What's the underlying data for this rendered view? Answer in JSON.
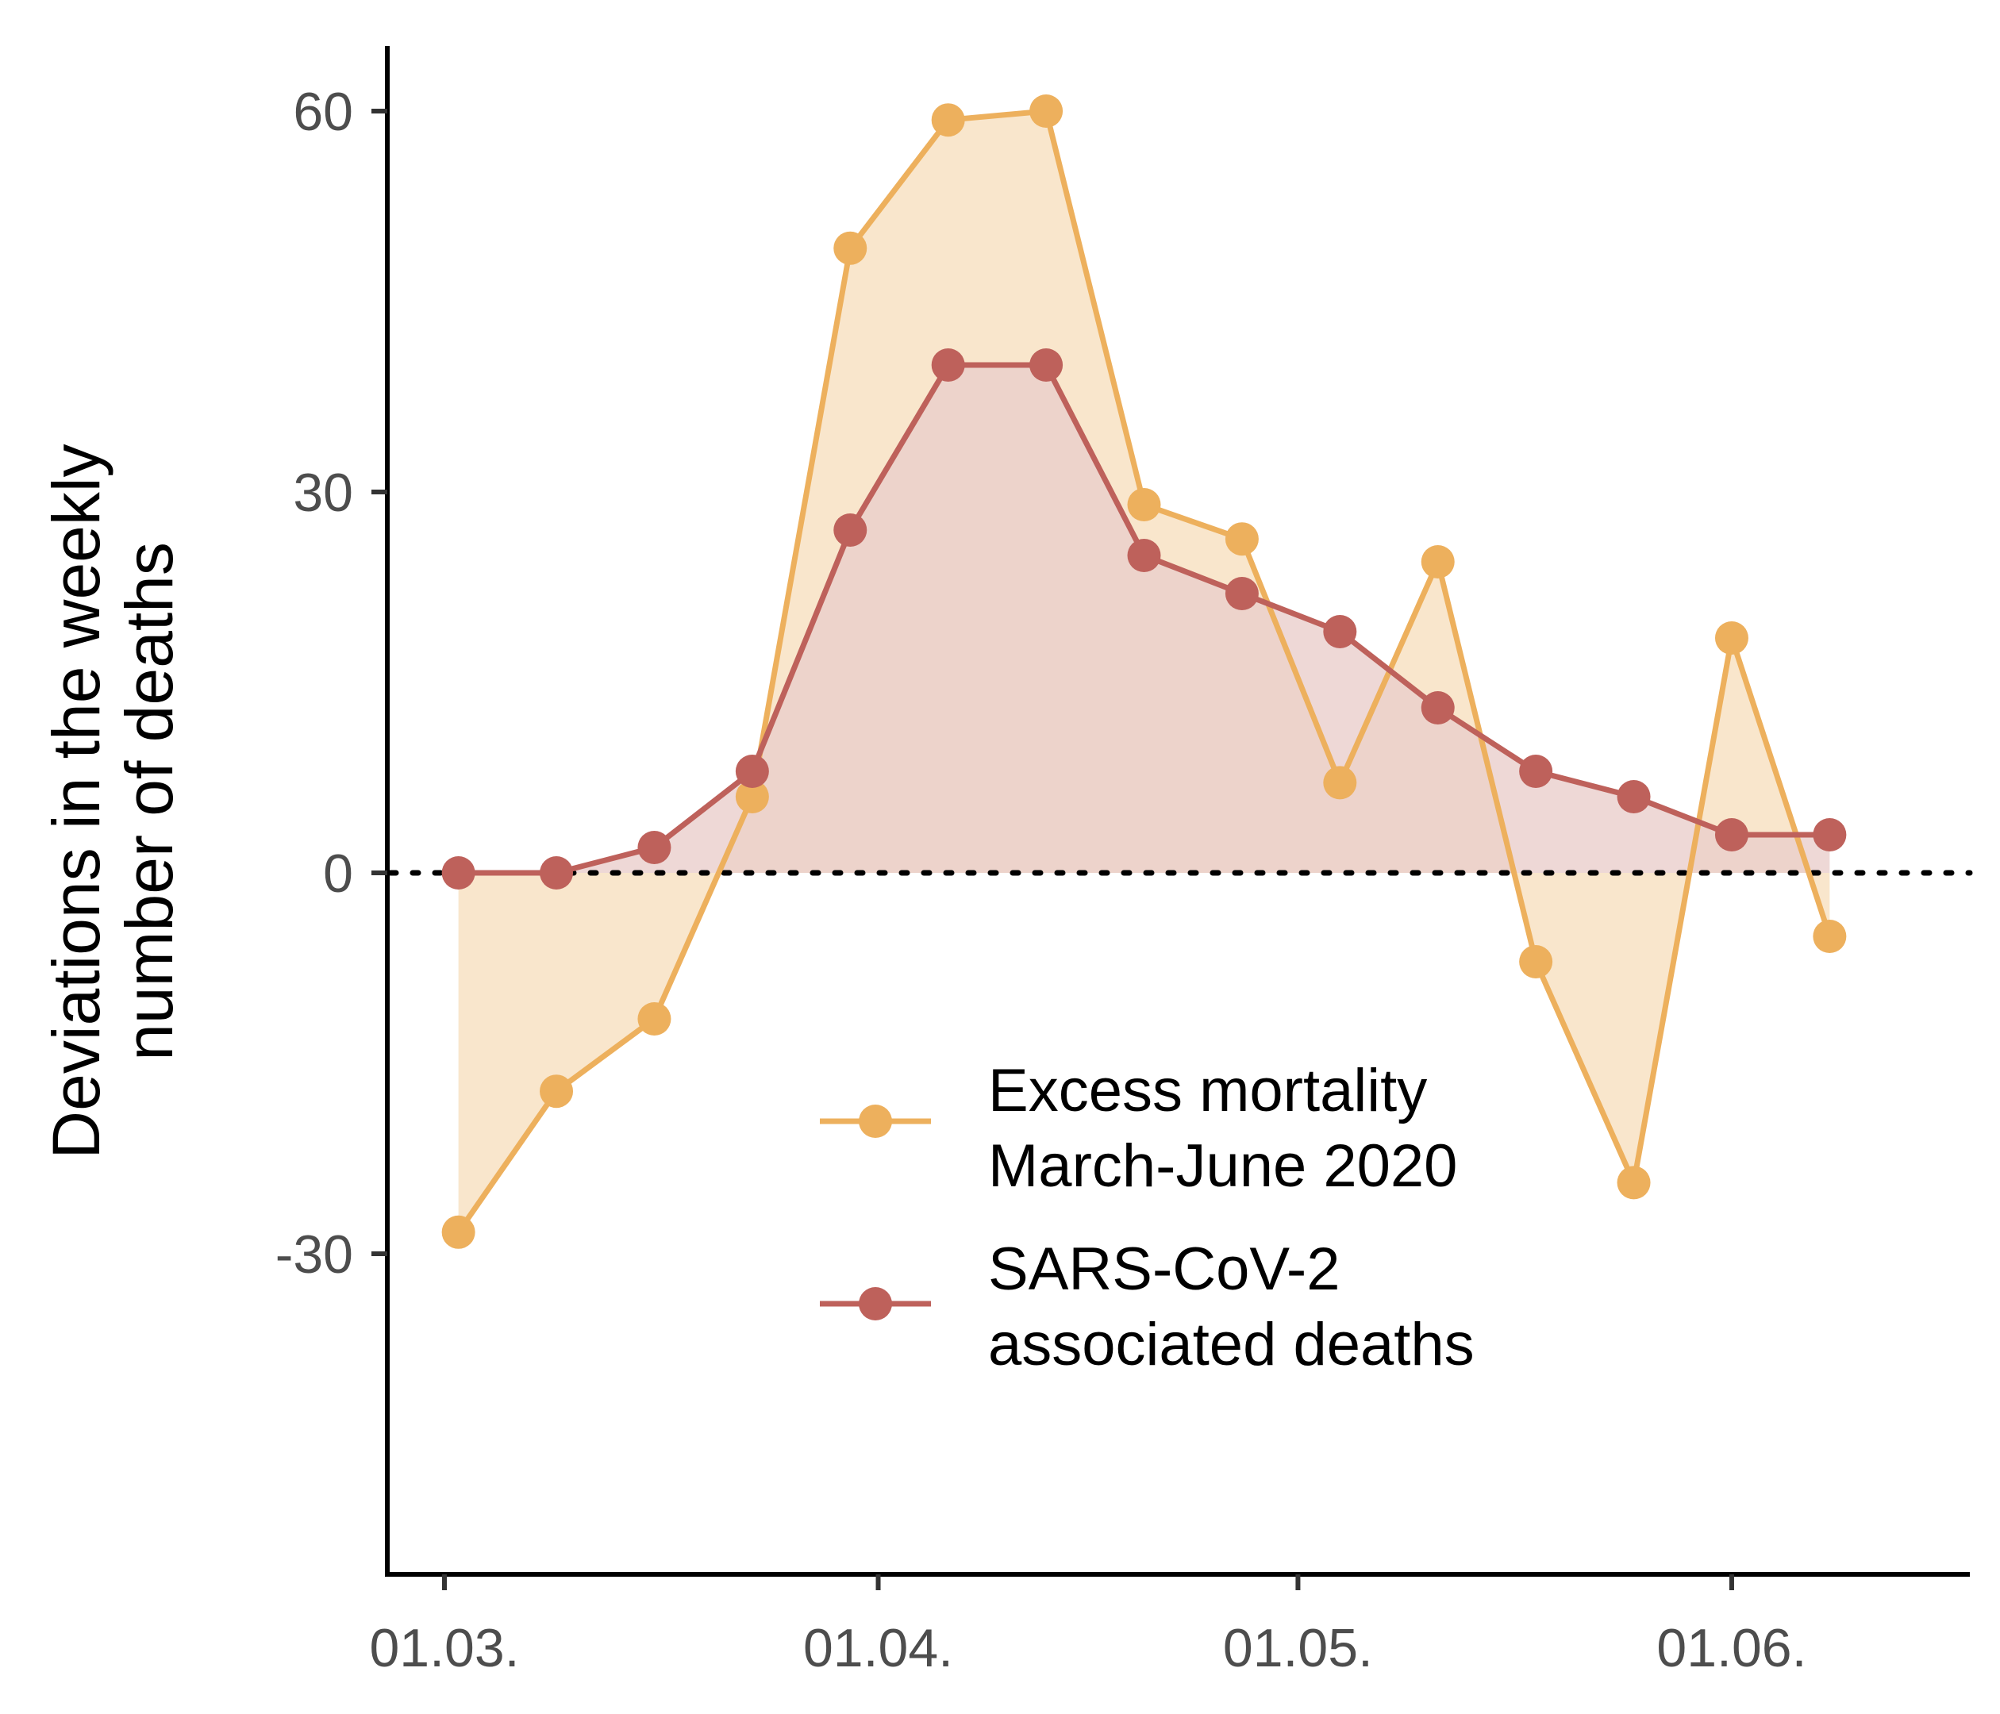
{
  "chart_data": {
    "type": "line",
    "title": "",
    "xlabel": "",
    "ylabel": [
      "Deviations in the weekly",
      "number of deaths"
    ],
    "x_tick_labels": [
      "01.03.",
      "01.04.",
      "01.05.",
      "01.06."
    ],
    "y_tick_labels": [
      "60",
      "30",
      "0",
      "-30"
    ],
    "y_ticks": [
      60,
      30,
      0,
      -30
    ],
    "ylim": [
      -55,
      65
    ],
    "x_dates": [
      "2020-03-02",
      "2020-03-09",
      "2020-03-16",
      "2020-03-23",
      "2020-03-30",
      "2020-04-06",
      "2020-04-13",
      "2020-04-20",
      "2020-04-27",
      "2020-05-04",
      "2020-05-11",
      "2020-05-18",
      "2020-05-25",
      "2020-06-01",
      "2020-06-08"
    ],
    "reference_line": {
      "y": 0,
      "style": "dotted"
    },
    "legend_position": "bottom-center",
    "series": [
      {
        "name": [
          "Excess mortality",
          "March-June 2020"
        ],
        "color": "#EDB05D",
        "fill_color": "#F9E6CC",
        "values": [
          -28.3,
          -17.2,
          -11.5,
          6,
          49.2,
          59.3,
          60,
          29,
          26.3,
          7.1,
          24.5,
          -7,
          -24.4,
          18.5,
          -5
        ]
      },
      {
        "name": [
          "SARS-CoV-2",
          "associated deaths"
        ],
        "color": "#BE615B",
        "fill_color": "#E9CDCB",
        "values": [
          0,
          0,
          2,
          8,
          27,
          40,
          40,
          25,
          22,
          19,
          13,
          8,
          6,
          3,
          3
        ]
      }
    ]
  }
}
